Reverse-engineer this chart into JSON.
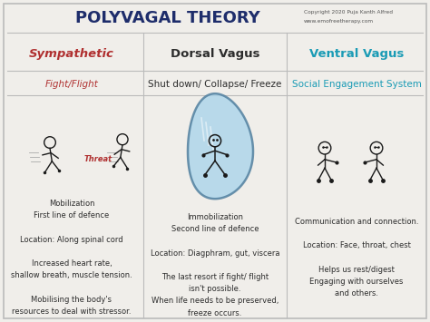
{
  "title": "POLYVAGAL THEORY",
  "copyright_line1": "Copyright 2020 Puja Kanth Alfred",
  "copyright_line2": "www.emofreetherapy.com",
  "background_color": "#f0eeea",
  "title_color": "#1e2d6b",
  "col1_header": "Sympathetic",
  "col2_header": "Dorsal Vagus",
  "col3_header": "Ventral Vagus",
  "col1_header_color": "#b03030",
  "col2_header_color": "#2c2c2c",
  "col3_header_color": "#1a9bb5",
  "col1_subheader": "Fight/Flight",
  "col2_subheader": "Shut down/ Collapse/ Freeze",
  "col3_subheader": "Social Engagement System",
  "col1_subheader_color": "#b03030",
  "col2_subheader_color": "#2c2c2c",
  "col3_subheader_color": "#1a9bb5",
  "col1_text": "Mobilization\nFirst line of defence\n\nLocation: Along spinal cord\n\nIncreased heart rate,\nshallow breath, muscle tension.\n\nMobilising the body's\nresources to deal with stressor.",
  "col2_text": "Immobilization\nSecond line of defence\n\nLocation: Diagphram, gut, viscera\n\nThe last resort if fight/ flight\nisn't possible.\nWhen life needs to be preserved,\nfreeze occurs.",
  "col3_text": "Communication and connection.\n\nLocation: Face, throat, chest\n\nHelps us rest/digest\nEngaging with ourselves\nand others.",
  "text_color": "#2c2c2c",
  "line_color": "#bbbbbb",
  "threat_color": "#b03030",
  "blob_fill": "#aad4ea",
  "blob_edge": "#4a7a9b",
  "stick_color": "#1a1a1a",
  "figw": 4.74,
  "figh": 3.55,
  "dpi": 100
}
